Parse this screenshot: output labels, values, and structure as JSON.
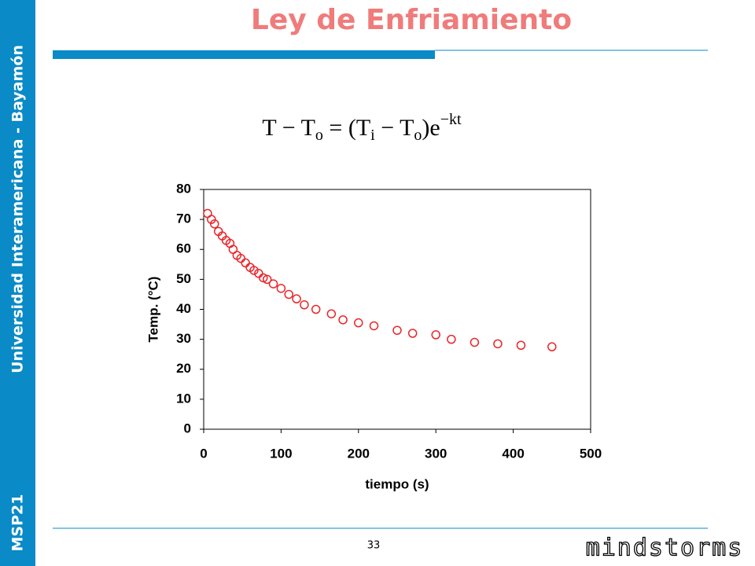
{
  "sidebar": {
    "institution": "Universidad Interamericana - Bayamón",
    "course": "MSP21"
  },
  "title": "Ley de Enfriamiento",
  "formula": [
    "T − T",
    "o",
    " = (T",
    "i",
    " − T",
    "o",
    ")e",
    "−kt"
  ],
  "page_number": "33",
  "logo": "mindstorms",
  "chart_data": {
    "type": "scatter",
    "x_label": "tiempo (s)",
    "y_label": "Temp. (°C)",
    "color": "#e8262a",
    "marker": "hollow-circle",
    "x": [
      5,
      10,
      14,
      19,
      24,
      29,
      34,
      38,
      43,
      48,
      54,
      60,
      65,
      71,
      77,
      82,
      90,
      100,
      110,
      120,
      130,
      145,
      165,
      180,
      200,
      220,
      250,
      270,
      300,
      320,
      350,
      380,
      410,
      450
    ],
    "values": [
      72,
      70,
      68.5,
      66,
      64.5,
      63,
      62,
      60,
      58,
      57,
      55.5,
      54,
      53,
      52,
      50.5,
      50,
      48.5,
      47,
      45,
      43.5,
      41.5,
      40,
      38.5,
      36.5,
      35.5,
      34.5,
      33,
      32,
      31.5,
      30,
      29,
      28.5,
      28,
      27.5
    ],
    "xlim": [
      0,
      500
    ],
    "xticks": [
      0,
      100,
      200,
      300,
      400,
      500
    ],
    "ylim": [
      0,
      80
    ],
    "yticks": [
      0,
      10,
      20,
      30,
      40,
      50,
      60,
      70,
      80
    ],
    "grid": false
  }
}
